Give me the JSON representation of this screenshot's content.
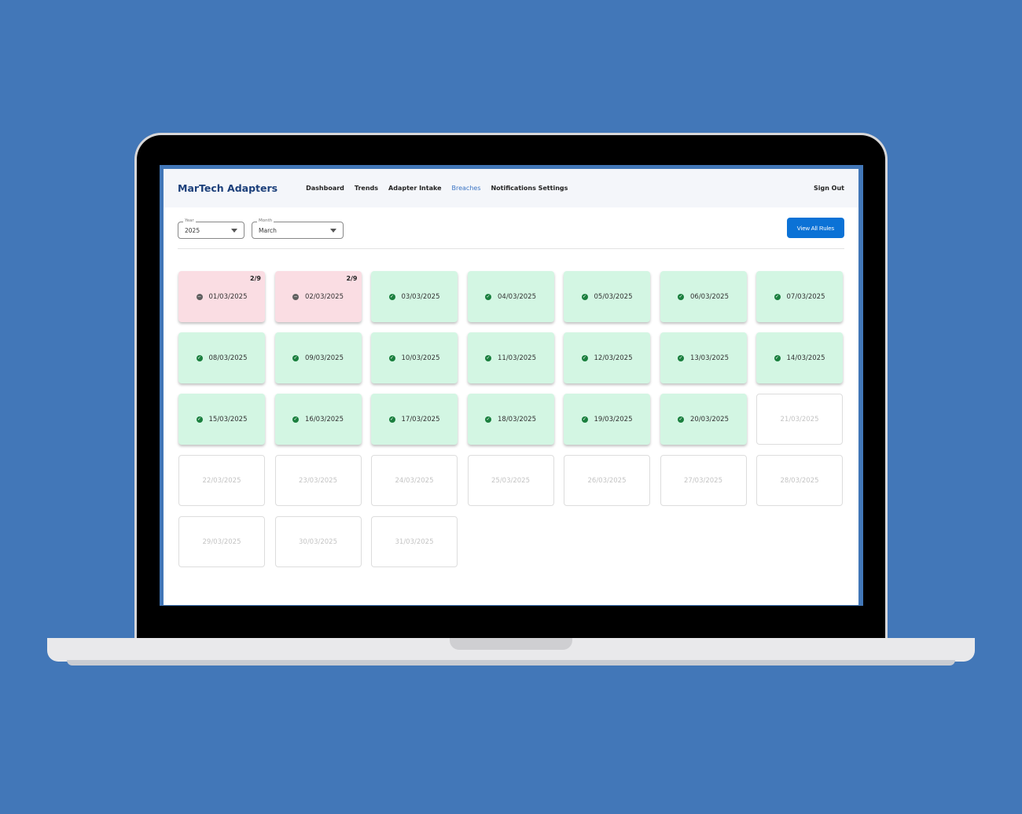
{
  "app": {
    "title": "MarTech Adapters"
  },
  "nav": {
    "items": [
      "Dashboard",
      "Trends",
      "Adapter Intake",
      "Breaches",
      "Notifications Settings"
    ],
    "active": "Breaches",
    "sign_out": "Sign Out"
  },
  "filters": {
    "year": {
      "label": "Year",
      "value": "2025"
    },
    "month": {
      "label": "Month",
      "value": "March"
    }
  },
  "actions": {
    "view_all_rules": "View All Rules"
  },
  "colors": {
    "breach": "#fadde3",
    "ok": "#d3f6e3",
    "accent": "#0b72d6",
    "brand": "#1b3f7a"
  },
  "days": [
    {
      "date": "01/03/2025",
      "status": "breach",
      "count": "2/9"
    },
    {
      "date": "02/03/2025",
      "status": "breach",
      "count": "2/9"
    },
    {
      "date": "03/03/2025",
      "status": "ok"
    },
    {
      "date": "04/03/2025",
      "status": "ok"
    },
    {
      "date": "05/03/2025",
      "status": "ok"
    },
    {
      "date": "06/03/2025",
      "status": "ok"
    },
    {
      "date": "07/03/2025",
      "status": "ok"
    },
    {
      "date": "08/03/2025",
      "status": "ok"
    },
    {
      "date": "09/03/2025",
      "status": "ok"
    },
    {
      "date": "10/03/2025",
      "status": "ok"
    },
    {
      "date": "11/03/2025",
      "status": "ok"
    },
    {
      "date": "12/03/2025",
      "status": "ok"
    },
    {
      "date": "13/03/2025",
      "status": "ok"
    },
    {
      "date": "14/03/2025",
      "status": "ok"
    },
    {
      "date": "15/03/2025",
      "status": "ok"
    },
    {
      "date": "16/03/2025",
      "status": "ok"
    },
    {
      "date": "17/03/2025",
      "status": "ok"
    },
    {
      "date": "18/03/2025",
      "status": "ok"
    },
    {
      "date": "19/03/2025",
      "status": "ok"
    },
    {
      "date": "20/03/2025",
      "status": "ok"
    },
    {
      "date": "21/03/2025",
      "status": "future"
    },
    {
      "date": "22/03/2025",
      "status": "future"
    },
    {
      "date": "23/03/2025",
      "status": "future"
    },
    {
      "date": "24/03/2025",
      "status": "future"
    },
    {
      "date": "25/03/2025",
      "status": "future"
    },
    {
      "date": "26/03/2025",
      "status": "future"
    },
    {
      "date": "27/03/2025",
      "status": "future"
    },
    {
      "date": "28/03/2025",
      "status": "future"
    },
    {
      "date": "29/03/2025",
      "status": "future"
    },
    {
      "date": "30/03/2025",
      "status": "future"
    },
    {
      "date": "31/03/2025",
      "status": "future"
    }
  ]
}
